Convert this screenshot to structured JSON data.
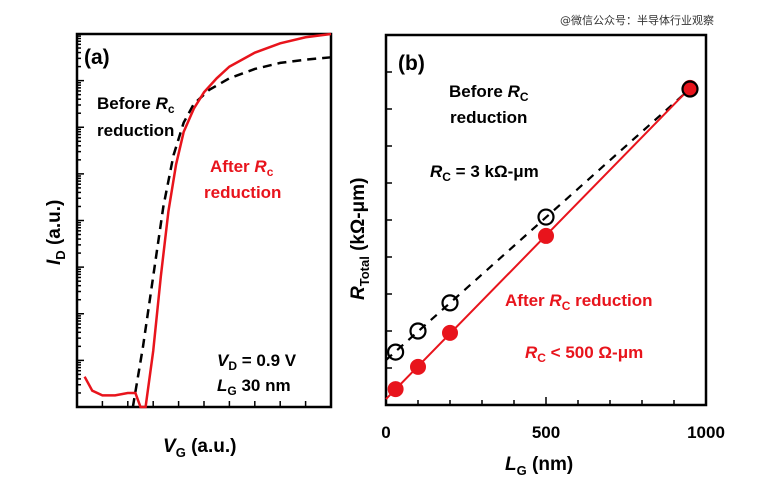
{
  "watermark": "@微信公众号：半导体行业观察",
  "chart_data": [
    {
      "panel": "(a)",
      "type": "line",
      "title": "",
      "xlabel": "V_G (a.u.)",
      "ylabel": "I_D (a.u.)",
      "yscale": "log",
      "decades": 8,
      "xlim": [
        0,
        10
      ],
      "ylim": [
        0,
        8
      ],
      "x_ticks_count": 10,
      "annotations": [
        "Before R_c reduction",
        "After R_c reduction",
        "V_D = 0.9 V",
        "L_G 30 nm"
      ],
      "series": [
        {
          "name": "Before Rc reduction",
          "style": "dashed",
          "color": "#000000",
          "x": [
            2.2,
            2.6,
            3.0,
            3.4,
            3.8,
            4.2,
            4.6,
            5.2,
            6.0,
            7.0,
            8.0,
            9.0,
            10.0
          ],
          "y": [
            0.0,
            1.3,
            2.8,
            4.3,
            5.4,
            6.1,
            6.5,
            6.8,
            7.05,
            7.25,
            7.38,
            7.45,
            7.5
          ]
        },
        {
          "name": "After Rc reduction",
          "style": "solid",
          "color": "#e8141c",
          "x": [
            0.3,
            0.6,
            1.0,
            1.5,
            2.0,
            2.3,
            2.5,
            2.7,
            3.0,
            3.3,
            3.6,
            3.9,
            4.2,
            4.6,
            5.0,
            5.5,
            6.0,
            7.0,
            8.0,
            9.0,
            10.0
          ],
          "y": [
            0.65,
            0.35,
            0.25,
            0.25,
            0.3,
            0.3,
            0.0,
            0.0,
            1.2,
            2.8,
            4.2,
            5.2,
            5.9,
            6.4,
            6.75,
            7.05,
            7.3,
            7.6,
            7.8,
            7.93,
            8.0
          ]
        }
      ]
    },
    {
      "panel": "(b)",
      "type": "scatter",
      "title": "",
      "xlabel": "L_G (nm)",
      "ylabel": "R_Total (kΩ-μm)",
      "xlim": [
        0,
        1000
      ],
      "ylim": [
        0,
        10
      ],
      "x_tick_labels": [
        "0",
        "500",
        "1000"
      ],
      "x_tick_values": [
        0,
        500,
        1000
      ],
      "x_minor_step": 100,
      "y_tick_step": 1,
      "annotations": [
        "Before R_C reduction",
        "R_C = 3 kΩ-μm",
        "After R_C reduction",
        "R_C < 500 Ω-μm"
      ],
      "series": [
        {
          "name": "Before RC reduction",
          "marker": "open-circle",
          "line": "dashed",
          "color": "#000000",
          "x": [
            30,
            100,
            200,
            500,
            950
          ],
          "y": [
            1.43,
            2.0,
            2.76,
            5.08,
            8.54
          ]
        },
        {
          "name": "After RC reduction",
          "marker": "filled-circle",
          "line": "solid",
          "color": "#e8141c",
          "x": [
            30,
            100,
            200,
            500,
            950
          ],
          "y": [
            0.43,
            1.03,
            1.95,
            4.57,
            8.57
          ]
        }
      ]
    }
  ],
  "labels": {
    "a_panel": "(a)",
    "b_panel": "(b)",
    "a_before_1": "Before ",
    "a_before_R": "R",
    "a_before_sub": "c",
    "a_before_2": "reduction",
    "a_after_1": "After ",
    "a_after_R": "R",
    "a_after_sub": "c",
    "a_after_2": "reduction",
    "a_vd_V": "V",
    "a_vd_sub": "D",
    "a_vd_val": " = 0.9 V",
    "a_lg_L": "L",
    "a_lg_sub": "G",
    "a_lg_val": " 30 nm",
    "a_xlabel_V": "V",
    "a_xlabel_sub": "G",
    "a_xlabel_unit": " (a.u.)",
    "a_ylabel_I": "I",
    "a_ylabel_sub": "D",
    "a_ylabel_unit": " (a.u.)",
    "b_before_1": "Before ",
    "b_before_R": "R",
    "b_before_sub": "C",
    "b_before_2": "reduction",
    "b_rc_R": "R",
    "b_rc_sub": "C",
    "b_rc_val": " = 3 kΩ-μm",
    "b_after_1": "After ",
    "b_after_R": "R",
    "b_after_sub": "C",
    "b_after_2": " reduction",
    "b_rc2_R": "R",
    "b_rc2_sub": "C",
    "b_rc2_val": " < 500 Ω-μm",
    "b_xlabel_L": "L",
    "b_xlabel_sub": "G",
    "b_xlabel_unit": " (nm)",
    "b_ylabel_R": "R",
    "b_ylabel_sub": "Total",
    "b_ylabel_unit": " (kΩ-μm)"
  }
}
